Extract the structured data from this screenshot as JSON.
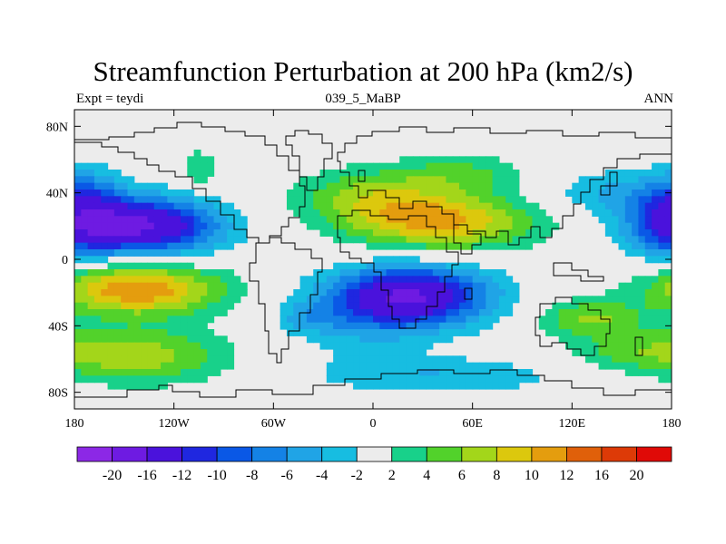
{
  "title": "Streamfunction Perturbation at 200 hPa (km2/s)",
  "left_string": "Expt = teydi",
  "center_string": "039_5_MaBP",
  "right_string": "ANN",
  "map": {
    "lon_range": [
      -180,
      180
    ],
    "lat_range": [
      -90,
      90
    ],
    "lon_ticks": [
      {
        "value": -180,
        "label": "180"
      },
      {
        "value": -120,
        "label": "120W"
      },
      {
        "value": -60,
        "label": "60W"
      },
      {
        "value": 0,
        "label": "0"
      },
      {
        "value": 60,
        "label": "60E"
      },
      {
        "value": 120,
        "label": "120E"
      },
      {
        "value": 180,
        "label": "180"
      }
    ],
    "lat_ticks": [
      {
        "value": 80,
        "label": "80N"
      },
      {
        "value": 40,
        "label": "40N"
      },
      {
        "value": 0,
        "label": "0"
      },
      {
        "value": -40,
        "label": "40S"
      },
      {
        "value": -80,
        "label": "80S"
      }
    ],
    "background_color": "#ececec",
    "coastline_color": "#000000"
  },
  "colorbar": {
    "labels": [
      "-20",
      "-16",
      "-12",
      "-10",
      "-8",
      "-6",
      "-4",
      "-2",
      "2",
      "4",
      "6",
      "8",
      "10",
      "12",
      "16",
      "20"
    ],
    "colors": [
      "#8c28e6",
      "#6e1be2",
      "#4a12dc",
      "#1f27e0",
      "#0a58e6",
      "#1482e6",
      "#20a4e6",
      "#17bde1",
      "#ececec",
      "#18d18a",
      "#52d22b",
      "#a3d61a",
      "#dcc80d",
      "#e49d0e",
      "#e0600a",
      "#dd3a07",
      "#e00a07"
    ]
  },
  "chart_data": {
    "type": "heatmap",
    "title": "Streamfunction Perturbation at 200 hPa (km2/s)",
    "xlabel": "",
    "ylabel": "",
    "xlim": [
      -180,
      180
    ],
    "ylim": [
      -90,
      90
    ],
    "levels": [
      -20,
      -16,
      -12,
      -10,
      -8,
      -6,
      -4,
      -2,
      2,
      4,
      6,
      8,
      10,
      12,
      16,
      20
    ],
    "features": [
      {
        "lon": -138,
        "lat": 20,
        "peak": -16,
        "sx": 32,
        "sy": 12
      },
      {
        "lon": -172,
        "lat": 40,
        "peak": -5,
        "sx": 16,
        "sy": 12
      },
      {
        "lon": 178,
        "lat": 20,
        "peak": -8,
        "sx": 20,
        "sy": 14
      },
      {
        "lon": 142,
        "lat": 40,
        "peak": -4,
        "sx": 26,
        "sy": 10
      },
      {
        "lon": -142,
        "lat": -18,
        "peak": 12,
        "sx": 36,
        "sy": 11
      },
      {
        "lon": -140,
        "lat": -58,
        "peak": 7,
        "sx": 38,
        "sy": 12
      },
      {
        "lon": 22,
        "lat": -22,
        "peak": -16,
        "sx": 34,
        "sy": 13
      },
      {
        "lon": -10,
        "lat": -40,
        "peak": -3,
        "sx": 30,
        "sy": 14
      },
      {
        "lon": 42,
        "lat": 22,
        "peak": 10,
        "sx": 40,
        "sy": 12
      },
      {
        "lon": 0,
        "lat": 38,
        "peak": 6,
        "sx": 34,
        "sy": 12
      },
      {
        "lon": 55,
        "lat": 52,
        "peak": 4,
        "sx": 28,
        "sy": 8
      },
      {
        "lon": 130,
        "lat": -35,
        "peak": 6,
        "sx": 22,
        "sy": 8
      },
      {
        "lon": 155,
        "lat": -55,
        "peak": 4,
        "sx": 30,
        "sy": 9
      },
      {
        "lon": 40,
        "lat": -70,
        "peak": -4,
        "sx": 55,
        "sy": 8
      },
      {
        "lon": -105,
        "lat": 55,
        "peak": 4,
        "sx": 8,
        "sy": 8
      },
      {
        "lon": -40,
        "lat": -35,
        "peak": -3,
        "sx": 12,
        "sy": 6
      },
      {
        "lon": -40,
        "lat": -2,
        "peak": 3,
        "sx": 8,
        "sy": 3
      }
    ]
  }
}
